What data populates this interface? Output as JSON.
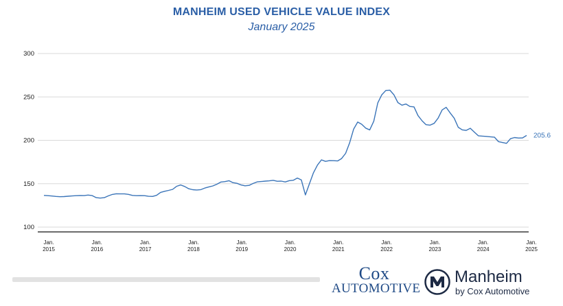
{
  "colors": {
    "title": "#2a5ea6",
    "line": "#3a74b8",
    "grid": "#d9d9d9",
    "axis": "#111111",
    "label": "#1a1a1a",
    "brand_dark": "#1d2a44",
    "brand_blue": "#1f4a86"
  },
  "logos": {
    "cox": {
      "line1": "Cox",
      "line2": "AUTOMOTIVE"
    },
    "manheim": {
      "name": "Manheim",
      "sub": "by Cox Automotive",
      "icon": "manheim-m-icon"
    }
  },
  "chart_data": {
    "type": "line",
    "title": "MANHEIM USED VEHICLE VALUE INDEX",
    "subtitle": "January 2025",
    "xlabel": "",
    "ylabel": "",
    "ylim": [
      100,
      300
    ],
    "yticks": [
      100,
      150,
      200,
      250,
      300
    ],
    "xlim": [
      "2015-01",
      "2025-01"
    ],
    "xticks": [
      {
        "date": "2015-01",
        "line1": "Jan.",
        "line2": "2015"
      },
      {
        "date": "2016-01",
        "line1": "Jan.",
        "line2": "2016"
      },
      {
        "date": "2017-01",
        "line1": "Jan.",
        "line2": "2017"
      },
      {
        "date": "2018-01",
        "line1": "Jan.",
        "line2": "2018"
      },
      {
        "date": "2019-01",
        "line1": "Jan.",
        "line2": "2019"
      },
      {
        "date": "2020-01",
        "line1": "Jan.",
        "line2": "2020"
      },
      {
        "date": "2021-01",
        "line1": "Jan.",
        "line2": "2021"
      },
      {
        "date": "2022-01",
        "line1": "Jan.",
        "line2": "2022"
      },
      {
        "date": "2023-01",
        "line1": "Jan.",
        "line2": "2023"
      },
      {
        "date": "2024-01",
        "line1": "Jan.",
        "line2": "2024"
      },
      {
        "date": "2025-01",
        "line1": "Jan.",
        "line2": "2025"
      }
    ],
    "grid": true,
    "end_label": "205.6",
    "series": [
      {
        "name": "",
        "points": [
          [
            "2015-01",
            136.5
          ],
          [
            "2015-02",
            136.2
          ],
          [
            "2015-03",
            135.8
          ],
          [
            "2015-04",
            135.3
          ],
          [
            "2015-05",
            135.0
          ],
          [
            "2015-06",
            135.2
          ],
          [
            "2015-07",
            135.6
          ],
          [
            "2015-08",
            135.9
          ],
          [
            "2015-09",
            136.2
          ],
          [
            "2015-10",
            136.4
          ],
          [
            "2015-11",
            136.3
          ],
          [
            "2015-12",
            136.9
          ],
          [
            "2016-01",
            136.3
          ],
          [
            "2016-02",
            133.9
          ],
          [
            "2016-03",
            133.4
          ],
          [
            "2016-04",
            133.9
          ],
          [
            "2016-05",
            136.0
          ],
          [
            "2016-06",
            137.6
          ],
          [
            "2016-07",
            138.4
          ],
          [
            "2016-08",
            138.3
          ],
          [
            "2016-09",
            138.3
          ],
          [
            "2016-10",
            137.7
          ],
          [
            "2016-11",
            136.5
          ],
          [
            "2016-12",
            136.2
          ],
          [
            "2017-01",
            136.3
          ],
          [
            "2017-02",
            136.2
          ],
          [
            "2017-03",
            135.5
          ],
          [
            "2017-04",
            135.3
          ],
          [
            "2017-05",
            136.6
          ],
          [
            "2017-06",
            140.0
          ],
          [
            "2017-07",
            141.3
          ],
          [
            "2017-08",
            142.3
          ],
          [
            "2017-09",
            143.5
          ],
          [
            "2017-10",
            147.0
          ],
          [
            "2017-11",
            148.5
          ],
          [
            "2017-12",
            146.8
          ],
          [
            "2018-01",
            144.2
          ],
          [
            "2018-02",
            143.1
          ],
          [
            "2018-03",
            142.8
          ],
          [
            "2018-04",
            143.2
          ],
          [
            "2018-05",
            145.0
          ],
          [
            "2018-06",
            146.3
          ],
          [
            "2018-07",
            147.4
          ],
          [
            "2018-08",
            149.4
          ],
          [
            "2018-09",
            151.9
          ],
          [
            "2018-10",
            152.4
          ],
          [
            "2018-11",
            153.4
          ],
          [
            "2018-12",
            151.2
          ],
          [
            "2019-01",
            150.4
          ],
          [
            "2019-02",
            148.5
          ],
          [
            "2019-03",
            147.6
          ],
          [
            "2019-04",
            148.1
          ],
          [
            "2019-05",
            150.3
          ],
          [
            "2019-06",
            152.1
          ],
          [
            "2019-07",
            152.5
          ],
          [
            "2019-08",
            153.0
          ],
          [
            "2019-09",
            153.3
          ],
          [
            "2019-10",
            153.9
          ],
          [
            "2019-11",
            152.8
          ],
          [
            "2019-12",
            153.0
          ],
          [
            "2020-01",
            152.0
          ],
          [
            "2020-02",
            153.5
          ],
          [
            "2020-03",
            154.0
          ],
          [
            "2020-04",
            156.5
          ],
          [
            "2020-05",
            154.3
          ],
          [
            "2020-06",
            137.1
          ],
          [
            "2020-07",
            150.0
          ],
          [
            "2020-08",
            162.5
          ],
          [
            "2020-09",
            171.5
          ],
          [
            "2020-10",
            177.5
          ],
          [
            "2020-11",
            175.7
          ],
          [
            "2020-12",
            176.6
          ],
          [
            "2021-01",
            176.5
          ],
          [
            "2021-02",
            176.2
          ],
          [
            "2021-03",
            179.0
          ],
          [
            "2021-04",
            185.0
          ],
          [
            "2021-05",
            197.0
          ],
          [
            "2021-06",
            213.0
          ],
          [
            "2021-07",
            221.0
          ],
          [
            "2021-08",
            218.5
          ],
          [
            "2021-09",
            214.0
          ],
          [
            "2021-10",
            212.0
          ],
          [
            "2021-11",
            222.0
          ],
          [
            "2021-12",
            243.0
          ],
          [
            "2022-01",
            252.5
          ],
          [
            "2022-02",
            257.5
          ],
          [
            "2022-03",
            257.8
          ],
          [
            "2022-04",
            252.5
          ],
          [
            "2022-05",
            243.5
          ],
          [
            "2022-06",
            240.5
          ],
          [
            "2022-07",
            241.8
          ],
          [
            "2022-08",
            239.0
          ],
          [
            "2022-09",
            238.5
          ],
          [
            "2022-10",
            228.5
          ],
          [
            "2022-11",
            222.5
          ],
          [
            "2022-12",
            218.0
          ],
          [
            "2023-01",
            217.5
          ],
          [
            "2023-02",
            219.5
          ],
          [
            "2023-03",
            225.5
          ],
          [
            "2023-04",
            235.0
          ],
          [
            "2023-05",
            238.0
          ],
          [
            "2023-06",
            231.5
          ],
          [
            "2023-07",
            225.5
          ],
          [
            "2023-08",
            215.0
          ],
          [
            "2023-09",
            212.0
          ],
          [
            "2023-10",
            211.5
          ],
          [
            "2023-11",
            213.8
          ],
          [
            "2023-12",
            209.5
          ],
          [
            "2024-01",
            205.2
          ],
          [
            "2024-02",
            204.8
          ],
          [
            "2024-03",
            204.5
          ],
          [
            "2024-04",
            204.0
          ],
          [
            "2024-05",
            203.6
          ],
          [
            "2024-06",
            198.5
          ],
          [
            "2024-07",
            197.5
          ],
          [
            "2024-08",
            196.5
          ],
          [
            "2024-09",
            201.9
          ],
          [
            "2024-10",
            203.2
          ],
          [
            "2024-11",
            202.6
          ],
          [
            "2024-12",
            202.8
          ],
          [
            "2025-01",
            205.6
          ]
        ]
      }
    ]
  }
}
